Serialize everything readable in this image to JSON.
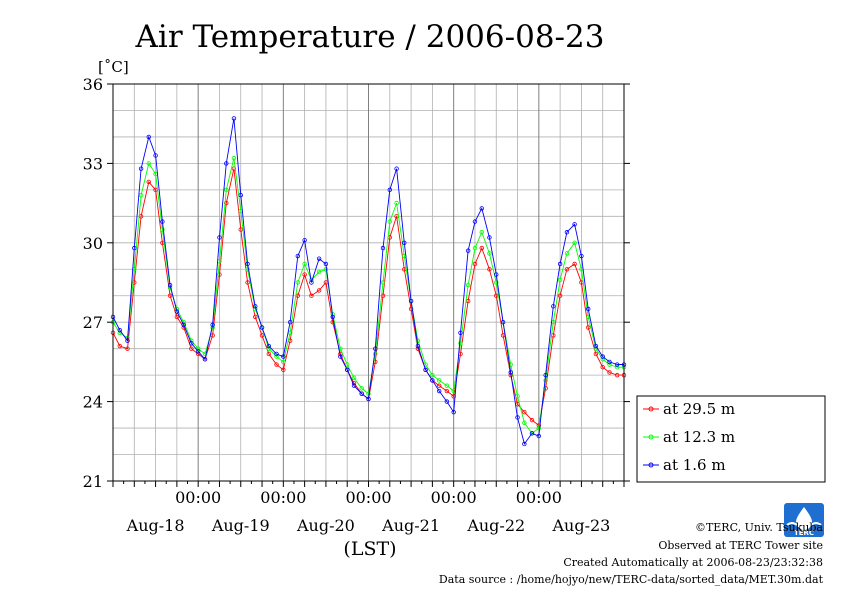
{
  "chart_data": {
    "type": "line",
    "title": "Air Temperature / 2006-08-23",
    "ylabel": "[˚C]",
    "xlabel": "(LST)",
    "ylim": [
      21,
      36
    ],
    "yticks": [
      21,
      24,
      27,
      30,
      33,
      36
    ],
    "xlim": [
      0,
      6
    ],
    "midnight_ticks": [
      {
        "x": 1,
        "label": "00:00"
      },
      {
        "x": 2,
        "label": "00:00"
      },
      {
        "x": 3,
        "label": "00:00"
      },
      {
        "x": 4,
        "label": "00:00"
      },
      {
        "x": 5,
        "label": "00:00"
      }
    ],
    "day_labels": [
      {
        "x": 0.5,
        "label": "Aug-18"
      },
      {
        "x": 1.5,
        "label": "Aug-19"
      },
      {
        "x": 2.5,
        "label": "Aug-20"
      },
      {
        "x": 3.5,
        "label": "Aug-21"
      },
      {
        "x": 4.5,
        "label": "Aug-22"
      },
      {
        "x": 5.5,
        "label": "Aug-23"
      }
    ],
    "grid": true,
    "legend_position": "lower-right-outside",
    "series": [
      {
        "name": "at 29.5 m",
        "color": "#ff0000",
        "x": [
          0.0,
          0.08,
          0.17,
          0.25,
          0.33,
          0.42,
          0.5,
          0.58,
          0.67,
          0.75,
          0.83,
          0.92,
          1.0,
          1.08,
          1.17,
          1.25,
          1.33,
          1.42,
          1.5,
          1.58,
          1.67,
          1.75,
          1.83,
          1.92,
          2.0,
          2.08,
          2.17,
          2.25,
          2.33,
          2.42,
          2.5,
          2.58,
          2.67,
          2.75,
          2.83,
          2.92,
          3.0,
          3.08,
          3.17,
          3.25,
          3.33,
          3.42,
          3.5,
          3.58,
          3.67,
          3.75,
          3.83,
          3.92,
          4.0,
          4.08,
          4.17,
          4.25,
          4.33,
          4.42,
          4.5,
          4.58,
          4.67,
          4.75,
          4.83,
          4.92,
          5.0,
          5.08,
          5.17,
          5.25,
          5.33,
          5.42,
          5.5,
          5.58,
          5.67,
          5.75,
          5.83,
          5.92,
          6.0
        ],
        "values": [
          26.6,
          26.1,
          26.0,
          28.5,
          31.0,
          32.3,
          32.0,
          30.0,
          28.0,
          27.2,
          26.8,
          26.0,
          25.8,
          25.6,
          26.5,
          28.8,
          31.5,
          32.8,
          30.5,
          28.5,
          27.2,
          26.5,
          25.8,
          25.4,
          25.2,
          26.3,
          28.0,
          28.8,
          28.0,
          28.2,
          28.5,
          27.0,
          25.8,
          25.2,
          24.7,
          24.3,
          24.1,
          25.5,
          28.0,
          30.2,
          31.0,
          29.0,
          27.5,
          26.0,
          25.2,
          24.8,
          24.6,
          24.4,
          24.2,
          25.8,
          27.8,
          29.2,
          29.8,
          29.0,
          28.0,
          26.5,
          25.0,
          23.9,
          23.6,
          23.3,
          23.1,
          24.5,
          26.5,
          28.0,
          29.0,
          29.2,
          28.5,
          26.8,
          25.8,
          25.3,
          25.1,
          25.0,
          25.0
        ]
      },
      {
        "name": "at 12.3 m",
        "color": "#00ff00",
        "x": [
          0.0,
          0.08,
          0.17,
          0.25,
          0.33,
          0.42,
          0.5,
          0.58,
          0.67,
          0.75,
          0.83,
          0.92,
          1.0,
          1.08,
          1.17,
          1.25,
          1.33,
          1.42,
          1.5,
          1.58,
          1.67,
          1.75,
          1.83,
          1.92,
          2.0,
          2.08,
          2.17,
          2.25,
          2.33,
          2.42,
          2.5,
          2.58,
          2.67,
          2.75,
          2.83,
          2.92,
          3.0,
          3.08,
          3.17,
          3.25,
          3.33,
          3.42,
          3.5,
          3.58,
          3.67,
          3.75,
          3.83,
          3.92,
          4.0,
          4.08,
          4.17,
          4.25,
          4.33,
          4.42,
          4.5,
          4.58,
          4.67,
          4.75,
          4.83,
          4.92,
          5.0,
          5.08,
          5.17,
          5.25,
          5.33,
          5.42,
          5.5,
          5.58,
          5.67,
          5.75,
          5.83,
          5.92,
          6.0
        ],
        "values": [
          27.0,
          26.6,
          26.4,
          29.0,
          31.8,
          33.0,
          32.6,
          30.5,
          28.3,
          27.5,
          27.0,
          26.3,
          26.0,
          25.8,
          26.8,
          29.3,
          32.0,
          33.2,
          31.2,
          29.0,
          27.5,
          26.8,
          26.0,
          25.7,
          25.5,
          26.6,
          28.5,
          29.2,
          28.6,
          28.9,
          29.0,
          27.3,
          26.0,
          25.4,
          24.9,
          24.5,
          24.3,
          25.8,
          28.5,
          30.8,
          31.5,
          29.5,
          27.8,
          26.3,
          25.4,
          25.0,
          24.8,
          24.6,
          24.4,
          26.2,
          28.4,
          29.8,
          30.4,
          29.6,
          28.5,
          27.0,
          25.4,
          24.2,
          23.2,
          22.8,
          23.0,
          24.8,
          27.0,
          28.6,
          29.6,
          30.0,
          29.0,
          27.2,
          26.0,
          25.6,
          25.4,
          25.3,
          25.3
        ]
      },
      {
        "name": "at 1.6 m",
        "color": "#0000ff",
        "x": [
          0.0,
          0.08,
          0.17,
          0.25,
          0.33,
          0.42,
          0.5,
          0.58,
          0.67,
          0.75,
          0.83,
          0.92,
          1.0,
          1.08,
          1.17,
          1.25,
          1.33,
          1.42,
          1.5,
          1.58,
          1.67,
          1.75,
          1.83,
          1.92,
          2.0,
          2.08,
          2.17,
          2.25,
          2.33,
          2.42,
          2.5,
          2.58,
          2.67,
          2.75,
          2.83,
          2.92,
          3.0,
          3.08,
          3.17,
          3.25,
          3.33,
          3.42,
          3.5,
          3.58,
          3.67,
          3.75,
          3.83,
          3.92,
          4.0,
          4.08,
          4.17,
          4.25,
          4.33,
          4.42,
          4.5,
          4.58,
          4.67,
          4.75,
          4.83,
          4.92,
          5.0,
          5.08,
          5.17,
          5.25,
          5.33,
          5.42,
          5.5,
          5.58,
          5.67,
          5.75,
          5.83,
          5.92,
          6.0
        ],
        "values": [
          27.2,
          26.7,
          26.3,
          29.8,
          32.8,
          34.0,
          33.3,
          30.8,
          28.4,
          27.4,
          26.9,
          26.2,
          25.9,
          25.6,
          26.9,
          30.2,
          33.0,
          34.7,
          31.8,
          29.2,
          27.6,
          26.8,
          26.1,
          25.8,
          25.7,
          27.0,
          29.5,
          30.1,
          28.5,
          29.4,
          29.2,
          27.2,
          25.7,
          25.2,
          24.6,
          24.3,
          24.1,
          26.0,
          29.8,
          32.0,
          32.8,
          30.0,
          27.8,
          26.1,
          25.2,
          24.8,
          24.4,
          24.0,
          23.6,
          26.6,
          29.7,
          30.8,
          31.3,
          30.2,
          28.8,
          27.0,
          25.1,
          23.4,
          22.4,
          22.8,
          22.7,
          25.0,
          27.6,
          29.2,
          30.4,
          30.7,
          29.5,
          27.5,
          26.1,
          25.7,
          25.5,
          25.4,
          25.4
        ]
      }
    ]
  },
  "footer": {
    "copyright": "©TERC, Univ. Tsukuba",
    "observed": "Observed at TERC Tower site",
    "created": "Created Automatically at 2006-08-23/23:32:38",
    "source": "Data source : /home/hojyo/new/TERC-data/sorted_data/MET.30m.dat"
  },
  "logo": {
    "text": "TERC",
    "color": "#1e6fd0"
  }
}
